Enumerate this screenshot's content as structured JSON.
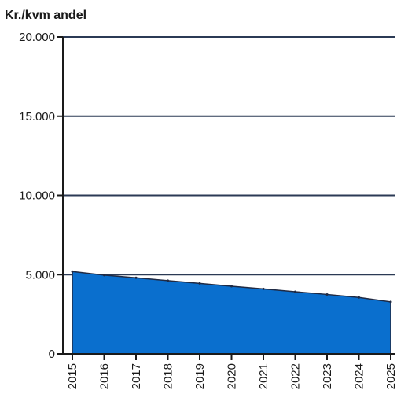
{
  "chart_data": {
    "type": "area",
    "title": "Kr./kvm andel",
    "xlabel": "",
    "ylabel": "",
    "x": [
      2015,
      2016,
      2017,
      2018,
      2019,
      2020,
      2021,
      2022,
      2023,
      2024,
      2025
    ],
    "x_tick_labels": [
      "2015",
      "2016",
      "2017",
      "2018",
      "2019",
      "2020",
      "2021",
      "2022",
      "2023",
      "2024",
      "2025"
    ],
    "values": [
      5200,
      4970,
      4800,
      4620,
      4450,
      4270,
      4100,
      3920,
      3750,
      3560,
      3280
    ],
    "ylim": [
      0,
      20000
    ],
    "y_ticks": [
      0,
      5000,
      10000,
      15000,
      20000
    ],
    "y_tick_labels": [
      "0",
      "5.000",
      "10.000",
      "15.000",
      "20.000"
    ],
    "grid": true,
    "fill_color": "#0a6fce",
    "edge_color": "#1f2a44",
    "grid_color": "#2b3a55"
  }
}
